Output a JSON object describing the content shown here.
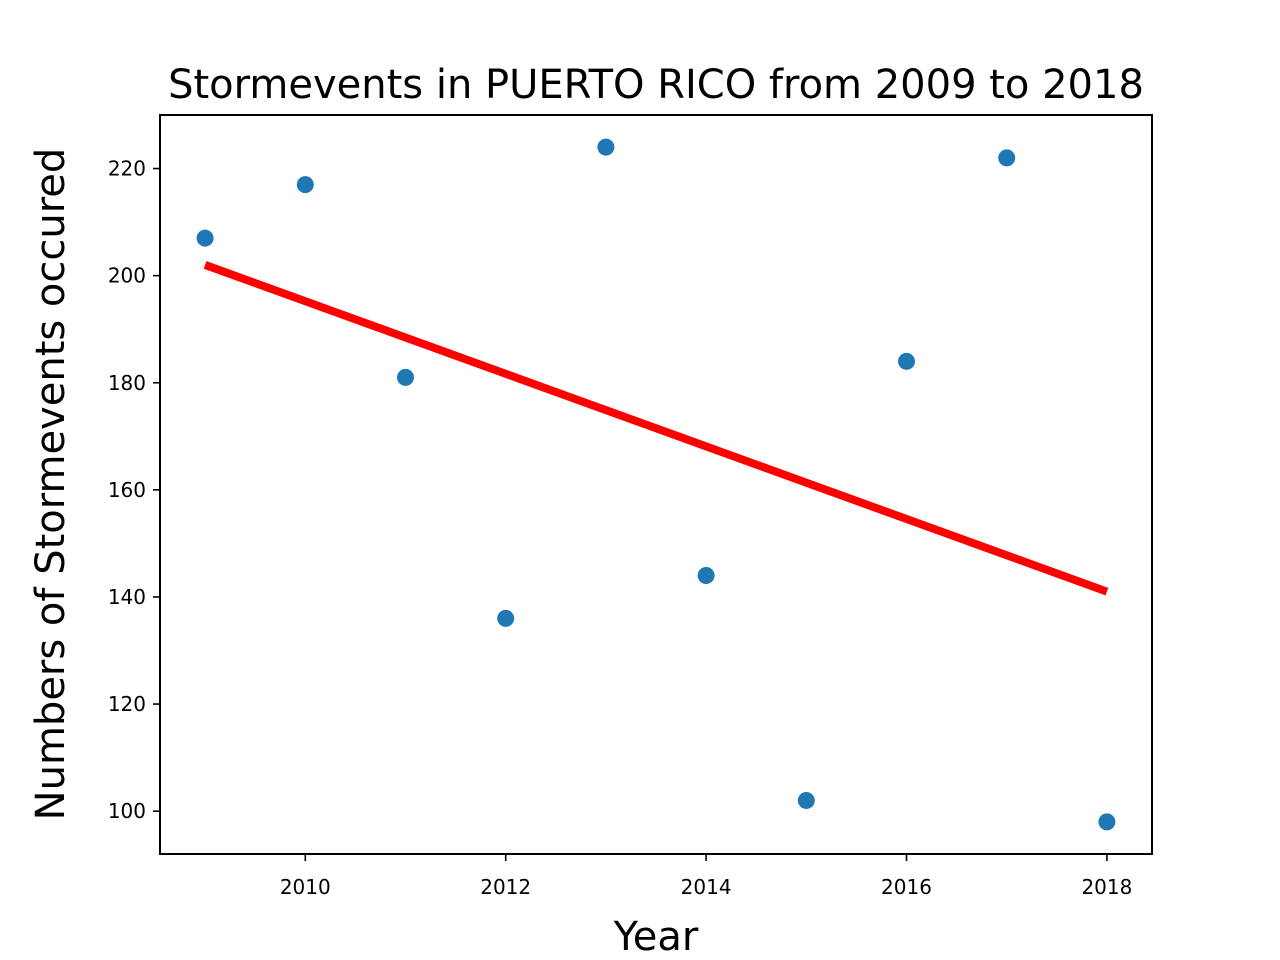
{
  "chart_data": {
    "type": "scatter",
    "title": "Stormevents in PUERTO RICO from 2009 to 2018",
    "xlabel": "Year",
    "ylabel": "Numbers of Stormevents occured",
    "xlim": [
      2008.55,
      2018.45
    ],
    "ylim": [
      92,
      230
    ],
    "xticks": [
      2010,
      2012,
      2014,
      2016,
      2018
    ],
    "yticks": [
      100,
      120,
      140,
      160,
      180,
      200,
      220
    ],
    "grid": false,
    "legend": "none",
    "series": [
      {
        "kind": "scatter",
        "color": "#1f77b4",
        "x": [
          2009,
          2010,
          2011,
          2012,
          2013,
          2014,
          2015,
          2016,
          2017,
          2018
        ],
        "y": [
          207,
          217,
          181,
          136,
          224,
          144,
          102,
          184,
          222,
          98
        ]
      },
      {
        "kind": "trend-line",
        "color": "#ff0000",
        "x": [
          2009,
          2018
        ],
        "y": [
          202,
          141
        ]
      }
    ]
  }
}
